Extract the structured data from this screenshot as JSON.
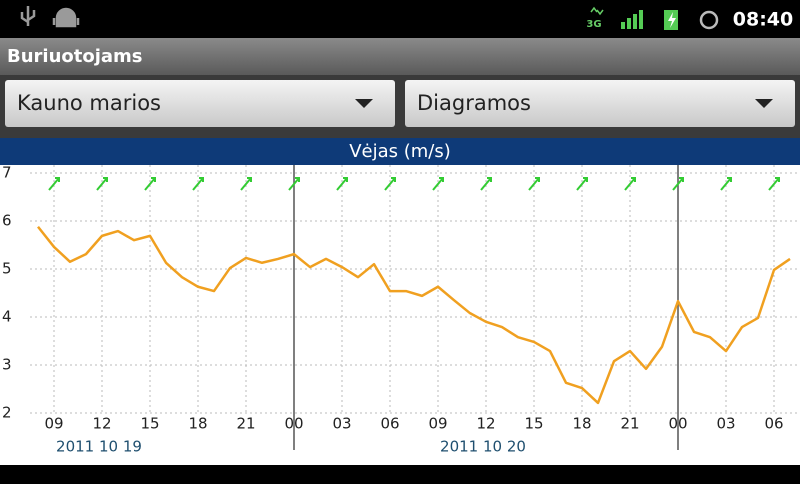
{
  "status_bar": {
    "network": "3G",
    "time": "08:40"
  },
  "app_bar": {
    "title": "Buriuotojams"
  },
  "spinners": [
    "Kauno marios",
    "Diagramos"
  ],
  "chart_data": {
    "type": "line",
    "title": "Vėjas (m/s)",
    "annotations": [
      "2011 10 19",
      "2011 10 20"
    ],
    "x": [
      8,
      9,
      10,
      11,
      12,
      13,
      14,
      15,
      16,
      17,
      18,
      19,
      20,
      21,
      22,
      23,
      24,
      25,
      26,
      27,
      28,
      29,
      30,
      31,
      32,
      33,
      34,
      35,
      36,
      37,
      38,
      39,
      40,
      41,
      42,
      43,
      44,
      45,
      46,
      47,
      48,
      49,
      50,
      51,
      52,
      53,
      54,
      55
    ],
    "series": [
      {
        "name": "Vėjas",
        "color": "#f0a020",
        "values": [
          5.88,
          5.46,
          5.15,
          5.31,
          5.69,
          5.79,
          5.6,
          5.69,
          5.13,
          4.83,
          4.63,
          4.54,
          5.02,
          5.23,
          5.13,
          5.21,
          5.31,
          5.04,
          5.21,
          5.04,
          4.83,
          5.1,
          4.54,
          4.54,
          4.44,
          4.63,
          4.35,
          4.08,
          3.9,
          3.79,
          3.58,
          3.48,
          3.29,
          2.63,
          2.52,
          2.21,
          3.08,
          3.29,
          2.92,
          3.38,
          4.33,
          3.69,
          3.58,
          3.29,
          3.79,
          3.98,
          4.98,
          5.21
        ]
      }
    ],
    "xlim": [
      7.5,
      55.625
    ],
    "xticks": [
      {
        "value": 9,
        "label": "09"
      },
      {
        "value": 12,
        "label": "12"
      },
      {
        "value": 15,
        "label": "15"
      },
      {
        "value": 18,
        "label": "18"
      },
      {
        "value": 21,
        "label": "21"
      },
      {
        "value": 24,
        "label": "00"
      },
      {
        "value": 27,
        "label": "03"
      },
      {
        "value": 30,
        "label": "06"
      },
      {
        "value": 33,
        "label": "09"
      },
      {
        "value": 36,
        "label": "12"
      },
      {
        "value": 39,
        "label": "15"
      },
      {
        "value": 42,
        "label": "18"
      },
      {
        "value": 45,
        "label": "21"
      },
      {
        "value": 48,
        "label": "00"
      },
      {
        "value": 51,
        "label": "03"
      },
      {
        "value": 54,
        "label": "06"
      }
    ],
    "ylim": [
      2,
      7
    ],
    "yticks": [
      2,
      3,
      4,
      5,
      6,
      7
    ],
    "grid": true
  }
}
